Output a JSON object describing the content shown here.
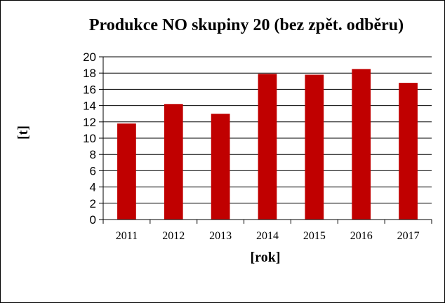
{
  "chart_data": {
    "type": "bar",
    "title": "Produkce NO skupiny 20 (bez zpět. odběru)",
    "xlabel": "[rok]",
    "ylabel": "[t]",
    "categories": [
      "2011",
      "2012",
      "2013",
      "2014",
      "2015",
      "2016",
      "2017"
    ],
    "values": [
      11.8,
      14.2,
      13.0,
      17.9,
      17.8,
      18.5,
      16.8
    ],
    "ylim": [
      0,
      20
    ],
    "yticks": [
      0,
      2,
      4,
      6,
      8,
      10,
      12,
      14,
      16,
      18,
      20
    ],
    "grid": true,
    "legend": "none",
    "bar_color": "#c00000"
  }
}
